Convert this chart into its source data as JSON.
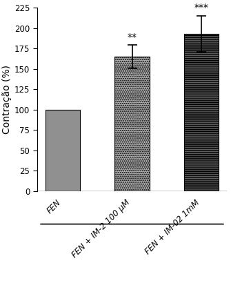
{
  "categories": [
    "FEN",
    "FEN + IM-2 100 µM",
    "FEN + IM-02 1mM"
  ],
  "values": [
    100,
    165,
    193
  ],
  "errors": [
    0,
    14,
    22
  ],
  "bar_colors": [
    "#909090",
    "#b0b0b0",
    "#606060"
  ],
  "hatch_patterns": [
    "",
    "......",
    "------"
  ],
  "hatch_colors": [
    "#808080",
    "#909090",
    "#404040"
  ],
  "significance": [
    "",
    "**",
    "***"
  ],
  "ylabel": "Contração (%)",
  "ylim": [
    0,
    225
  ],
  "yticks": [
    0,
    25,
    50,
    75,
    100,
    125,
    150,
    175,
    200,
    225
  ],
  "bar_width": 0.5,
  "background_color": "#ffffff",
  "sig_fontsize": 10,
  "ylabel_fontsize": 10,
  "tick_fontsize": 8.5,
  "xlabel_fontsize": 8.5
}
